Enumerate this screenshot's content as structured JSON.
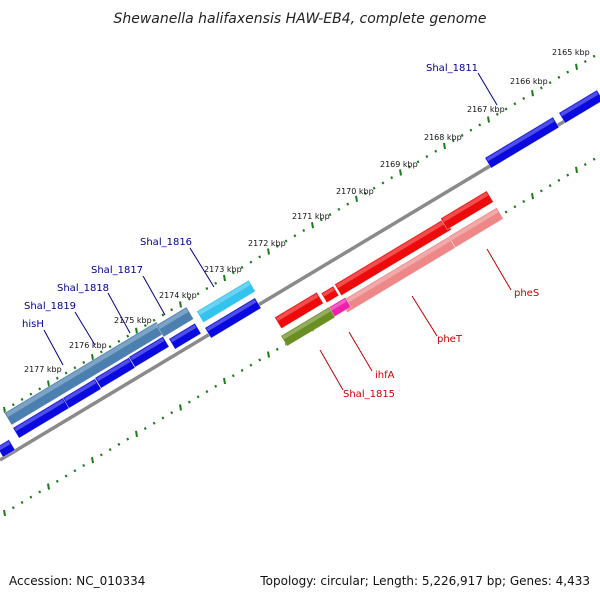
{
  "title": "Shewanella halifaxensis HAW-EB4, complete genome",
  "footer": {
    "accession": "Accession: NC_010334",
    "summary": "Topology: circular; Length: 5,226,917 bp; Genes: 4,433"
  },
  "colors": {
    "backbone": "#8a8a8a",
    "tick": "#1f7a1f",
    "label_forward": "#00008b",
    "label_reverse": "#cc0000",
    "cds_blue": "#0a0ae0",
    "cds_steel": "#4a7fb0",
    "cds_cyan": "#33c3ee",
    "cds_red": "#ee0a0a",
    "cds_pink": "#ee8888",
    "cds_magenta": "#ee22aa",
    "cds_olive": "#6b8e23"
  },
  "kbp_ticks": [
    "2165 kbp",
    "2166 kbp",
    "2167 kbp",
    "2168 kbp",
    "2169 kbp",
    "2170 kbp",
    "2171 kbp",
    "2172 kbp",
    "2173 kbp",
    "2174 kbp",
    "2175 kbp",
    "2176 kbp",
    "2177 kbp"
  ],
  "gene_labels_forward": [
    "Shal_1811",
    "Shal_1816",
    "Shal_1817",
    "Shal_1818",
    "Shal_1819",
    "hisH"
  ],
  "gene_labels_reverse": [
    "pheS",
    "pheT",
    "ihfA",
    "Shal_1815"
  ]
}
